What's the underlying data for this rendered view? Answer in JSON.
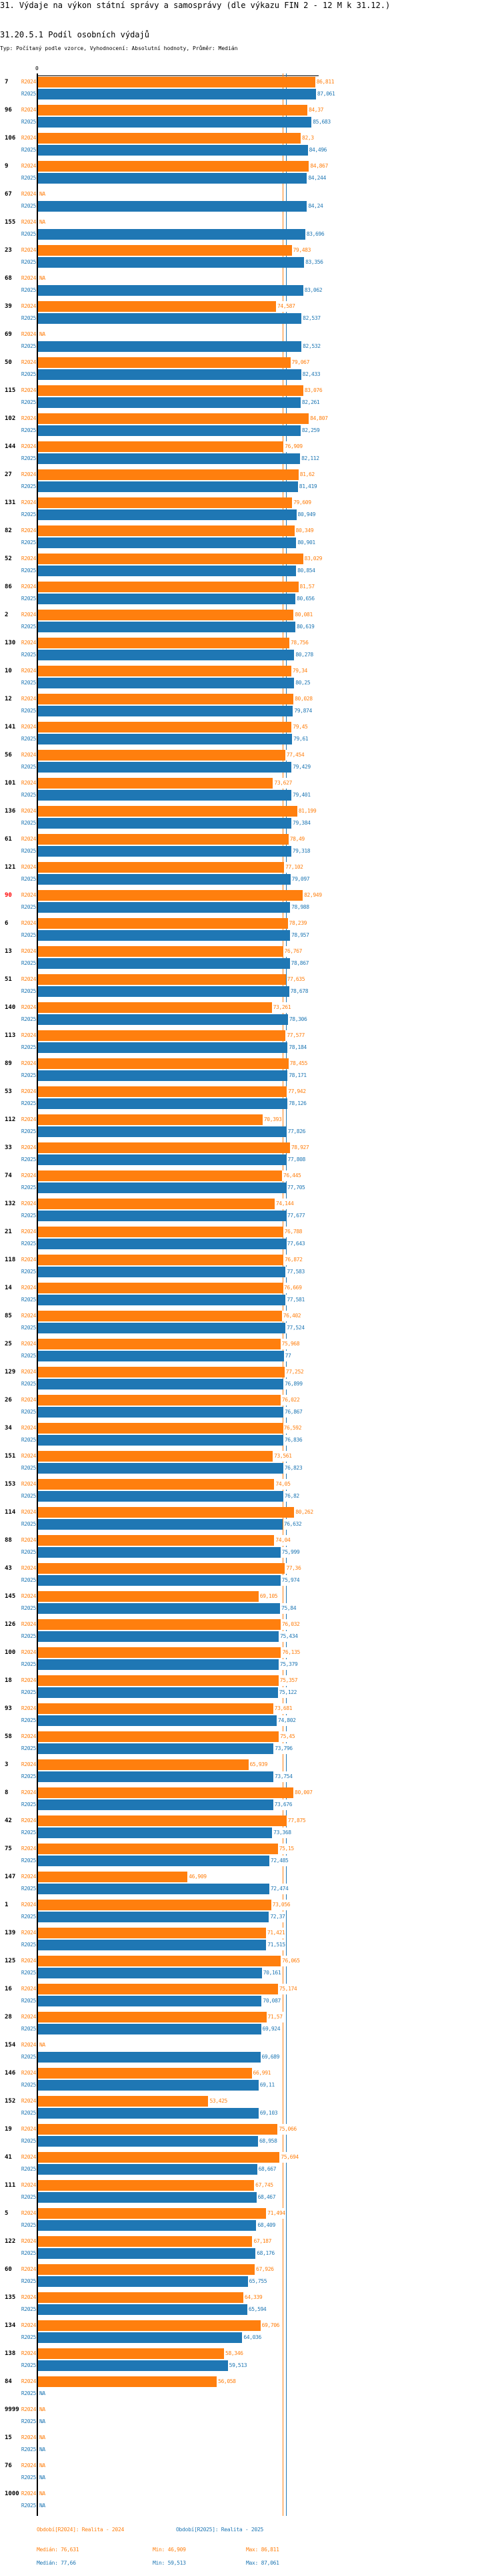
{
  "header": {
    "title": "31. Výdaje na výkon státní správy a samosprávy (dle výkazu FIN 2 - 12 M k 31.12.)",
    "subtitle": "31.20.5.1 Podíl osobních výdajů",
    "meta": "Typ: Počítaný podle vzorce, Vyhodnocení: Absolutní hodnoty, Průměr: Medián"
  },
  "colors": {
    "r2024": "#ff7f0e",
    "r2025": "#1f77b4",
    "highlight": "#ff0000"
  },
  "chart_data": {
    "type": "bar",
    "orientation": "horizontal",
    "axis_zero_label": "0",
    "series_names": [
      "R2024",
      "R2025"
    ],
    "na_label": "NA",
    "highlight_category": "90",
    "xlim": [
      0,
      88
    ],
    "groups": [
      {
        "c": "7",
        "v": [
          86.811,
          87.061
        ]
      },
      {
        "c": "96",
        "v": [
          84.37,
          85.683
        ]
      },
      {
        "c": "106",
        "v": [
          82.3,
          84.496
        ]
      },
      {
        "c": "9",
        "v": [
          84.867,
          84.244
        ]
      },
      {
        "c": "67",
        "v": [
          null,
          84.24
        ]
      },
      {
        "c": "155",
        "v": [
          null,
          83.696
        ]
      },
      {
        "c": "23",
        "v": [
          79.483,
          83.356
        ]
      },
      {
        "c": "68",
        "v": [
          null,
          83.062
        ]
      },
      {
        "c": "39",
        "v": [
          74.587,
          82.537
        ]
      },
      {
        "c": "69",
        "v": [
          null,
          82.532
        ]
      },
      {
        "c": "50",
        "v": [
          79.067,
          82.433
        ]
      },
      {
        "c": "115",
        "v": [
          83.076,
          82.261
        ]
      },
      {
        "c": "102",
        "v": [
          84.807,
          82.259
        ]
      },
      {
        "c": "144",
        "v": [
          76.909,
          82.112
        ]
      },
      {
        "c": "27",
        "v": [
          81.62,
          81.419
        ]
      },
      {
        "c": "131",
        "v": [
          79.609,
          80.949
        ]
      },
      {
        "c": "82",
        "v": [
          80.349,
          80.901
        ]
      },
      {
        "c": "52",
        "v": [
          83.029,
          80.854
        ]
      },
      {
        "c": "86",
        "v": [
          81.57,
          80.656
        ]
      },
      {
        "c": "2",
        "v": [
          80.081,
          80.619
        ]
      },
      {
        "c": "130",
        "v": [
          78.756,
          80.278
        ]
      },
      {
        "c": "10",
        "v": [
          79.34,
          80.25
        ]
      },
      {
        "c": "12",
        "v": [
          80.028,
          79.874
        ]
      },
      {
        "c": "141",
        "v": [
          79.45,
          79.61
        ]
      },
      {
        "c": "56",
        "v": [
          77.454,
          79.429
        ]
      },
      {
        "c": "101",
        "v": [
          73.627,
          79.401
        ]
      },
      {
        "c": "136",
        "v": [
          81.199,
          79.384
        ]
      },
      {
        "c": "61",
        "v": [
          78.49,
          79.318
        ]
      },
      {
        "c": "121",
        "v": [
          77.102,
          79.097
        ]
      },
      {
        "c": "90",
        "v": [
          82.949,
          78.988
        ]
      },
      {
        "c": "6",
        "v": [
          78.239,
          78.957
        ]
      },
      {
        "c": "13",
        "v": [
          76.767,
          78.867
        ]
      },
      {
        "c": "51",
        "v": [
          77.635,
          78.678
        ]
      },
      {
        "c": "140",
        "v": [
          73.261,
          78.306
        ]
      },
      {
        "c": "113",
        "v": [
          77.577,
          78.184
        ]
      },
      {
        "c": "89",
        "v": [
          78.455,
          78.171
        ]
      },
      {
        "c": "53",
        "v": [
          77.942,
          78.126
        ]
      },
      {
        "c": "112",
        "v": [
          70.393,
          77.826
        ]
      },
      {
        "c": "33",
        "v": [
          78.927,
          77.808
        ]
      },
      {
        "c": "74",
        "v": [
          76.445,
          77.705
        ]
      },
      {
        "c": "132",
        "v": [
          74.144,
          77.677
        ]
      },
      {
        "c": "21",
        "v": [
          76.788,
          77.643
        ]
      },
      {
        "c": "118",
        "v": [
          76.872,
          77.583
        ]
      },
      {
        "c": "14",
        "v": [
          76.669,
          77.581
        ]
      },
      {
        "c": "85",
        "v": [
          76.402,
          77.524
        ]
      },
      {
        "c": "25",
        "v": [
          75.968,
          77
        ]
      },
      {
        "c": "129",
        "v": [
          77.252,
          76.899
        ]
      },
      {
        "c": "26",
        "v": [
          76.022,
          76.867
        ]
      },
      {
        "c": "34",
        "v": [
          76.592,
          76.836
        ]
      },
      {
        "c": "151",
        "v": [
          73.561,
          76.823
        ]
      },
      {
        "c": "153",
        "v": [
          74.05,
          76.82
        ]
      },
      {
        "c": "114",
        "v": [
          80.262,
          76.632
        ]
      },
      {
        "c": "88",
        "v": [
          74.04,
          75.999
        ]
      },
      {
        "c": "43",
        "v": [
          77.36,
          75.974
        ]
      },
      {
        "c": "145",
        "v": [
          69.105,
          75.84
        ]
      },
      {
        "c": "126",
        "v": [
          76.032,
          75.434
        ]
      },
      {
        "c": "100",
        "v": [
          76.135,
          75.379
        ]
      },
      {
        "c": "18",
        "v": [
          75.357,
          75.122
        ]
      },
      {
        "c": "93",
        "v": [
          73.681,
          74.802
        ]
      },
      {
        "c": "58",
        "v": [
          75.45,
          73.796
        ]
      },
      {
        "c": "3",
        "v": [
          65.939,
          73.754
        ]
      },
      {
        "c": "8",
        "v": [
          80.007,
          73.676
        ]
      },
      {
        "c": "42",
        "v": [
          77.875,
          73.368
        ]
      },
      {
        "c": "75",
        "v": [
          75.15,
          72.485
        ]
      },
      {
        "c": "147",
        "v": [
          46.909,
          72.474
        ]
      },
      {
        "c": "1",
        "v": [
          73.056,
          72.37
        ]
      },
      {
        "c": "139",
        "v": [
          71.421,
          71.515
        ]
      },
      {
        "c": "125",
        "v": [
          76.065,
          70.161
        ]
      },
      {
        "c": "16",
        "v": [
          75.174,
          70.087
        ]
      },
      {
        "c": "28",
        "v": [
          71.57,
          69.924
        ]
      },
      {
        "c": "154",
        "v": [
          null,
          69.689
        ]
      },
      {
        "c": "146",
        "v": [
          66.991,
          69.11
        ]
      },
      {
        "c": "152",
        "v": [
          53.425,
          69.103
        ]
      },
      {
        "c": "19",
        "v": [
          75.066,
          68.958
        ]
      },
      {
        "c": "41",
        "v": [
          75.694,
          68.667
        ]
      },
      {
        "c": "111",
        "v": [
          67.745,
          68.467
        ]
      },
      {
        "c": "5",
        "v": [
          71.494,
          68.409
        ]
      },
      {
        "c": "122",
        "v": [
          67.187,
          68.176
        ]
      },
      {
        "c": "60",
        "v": [
          67.926,
          65.755
        ]
      },
      {
        "c": "135",
        "v": [
          64.339,
          65.594
        ]
      },
      {
        "c": "134",
        "v": [
          69.706,
          64.036
        ]
      },
      {
        "c": "138",
        "v": [
          58.346,
          59.513
        ]
      },
      {
        "c": "84",
        "v": [
          56.058,
          null
        ]
      },
      {
        "c": "9999",
        "v": [
          null,
          null
        ]
      },
      {
        "c": "15",
        "v": [
          null,
          null
        ]
      },
      {
        "c": "76",
        "v": [
          null,
          null
        ]
      },
      {
        "c": "1000",
        "v": [
          null,
          null
        ]
      }
    ],
    "medians": [
      76.631,
      77.66
    ]
  },
  "legend": {
    "r2024_label": "Období[R2024]: Realita - 2024",
    "r2025_label": "Období[R2025]: Realita - 2025",
    "r2024_median": "Medián: 76,631",
    "r2024_min": "Min: 46,909",
    "r2024_max": "Max: 86,811",
    "r2025_median": "Medián: 77,66",
    "r2025_min": "Min: 59,513",
    "r2025_max": "Max: 87,061"
  }
}
